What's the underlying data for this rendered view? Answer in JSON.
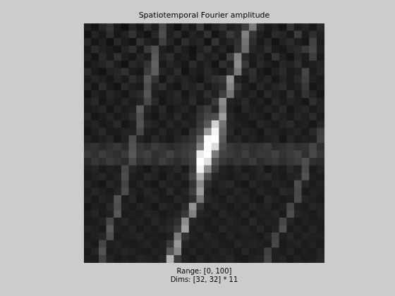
{
  "chart_data": {
    "type": "heatmap",
    "title": "Spatiotemporal Fourier amplitude",
    "annotations": [
      "Range: [0, 100]",
      "Dims: [32, 32] * 11"
    ],
    "color_range": [
      0,
      100
    ],
    "xlim": [
      0.5,
      32.5
    ],
    "ylim": [
      32.5,
      0.5
    ],
    "tick_labels": false,
    "grid": false,
    "cells": [
      [
        12,
        8,
        15,
        20,
        10,
        6,
        14,
        9,
        18,
        11,
        28,
        13,
        7,
        16,
        10,
        22,
        9,
        14,
        19,
        12,
        15,
        24,
        48,
        17,
        10,
        13,
        8,
        20,
        11,
        14,
        9,
        16
      ],
      [
        7,
        14,
        10,
        18,
        9,
        13,
        20,
        11,
        8,
        15,
        30,
        12,
        17,
        9,
        14,
        11,
        19,
        8,
        13,
        22,
        16,
        50,
        21,
        12,
        9,
        17,
        14,
        10,
        23,
        11,
        18,
        13
      ],
      [
        15,
        9,
        12,
        7,
        16,
        11,
        8,
        19,
        13,
        10,
        25,
        14,
        9,
        18,
        12,
        15,
        8,
        20,
        11,
        14,
        19,
        45,
        18,
        10,
        15,
        8,
        13,
        17,
        12,
        9,
        26,
        11
      ],
      [
        10,
        17,
        13,
        11,
        8,
        14,
        19,
        10,
        22,
        32,
        12,
        9,
        16,
        11,
        7,
        13,
        18,
        10,
        14,
        9,
        20,
        42,
        15,
        12,
        18,
        11,
        9,
        14,
        16,
        22,
        28,
        13
      ],
      [
        13,
        8,
        16,
        10,
        19,
        12,
        9,
        15,
        11,
        35,
        14,
        18,
        10,
        13,
        8,
        17,
        12,
        15,
        9,
        24,
        52,
        16,
        11,
        14,
        9,
        20,
        12,
        8,
        15,
        11,
        24,
        10
      ],
      [
        9,
        12,
        14,
        18,
        11,
        7,
        16,
        13,
        20,
        38,
        10,
        15,
        12,
        9,
        17,
        11,
        14,
        8,
        19,
        13,
        55,
        22,
        10,
        16,
        12,
        9,
        15,
        13,
        18,
        10,
        12,
        14
      ],
      [
        16,
        10,
        8,
        13,
        15,
        19,
        11,
        9,
        24,
        36,
        14,
        11,
        17,
        8,
        13,
        10,
        16,
        12,
        9,
        18,
        47,
        14,
        19,
        11,
        8,
        13,
        17,
        10,
        12,
        27,
        11,
        15
      ],
      [
        11,
        15,
        12,
        9,
        14,
        10,
        18,
        13,
        34,
        20,
        9,
        16,
        12,
        14,
        11,
        8,
        15,
        19,
        22,
        58,
        13,
        10,
        17,
        12,
        15,
        9,
        14,
        11,
        16,
        25,
        13,
        10
      ],
      [
        14,
        9,
        17,
        11,
        8,
        16,
        12,
        10,
        30,
        14,
        18,
        11,
        9,
        15,
        13,
        17,
        10,
        14,
        18,
        52,
        20,
        12,
        9,
        15,
        11,
        14,
        17,
        10,
        13,
        22,
        9,
        12
      ],
      [
        8,
        13,
        10,
        15,
        12,
        9,
        14,
        17,
        33,
        12,
        10,
        13,
        16,
        9,
        14,
        11,
        18,
        13,
        25,
        46,
        15,
        11,
        14,
        9,
        16,
        12,
        10,
        18,
        11,
        20,
        14,
        9
      ],
      [
        12,
        16,
        9,
        13,
        10,
        15,
        11,
        14,
        28,
        16,
        9,
        12,
        14,
        11,
        17,
        10,
        13,
        22,
        55,
        14,
        12,
        16,
        10,
        13,
        9,
        15,
        11,
        14,
        12,
        9,
        18,
        13
      ],
      [
        10,
        12,
        15,
        9,
        14,
        11,
        13,
        36,
        15,
        10,
        16,
        9,
        12,
        14,
        10,
        18,
        24,
        15,
        50,
        13,
        9,
        15,
        12,
        10,
        14,
        11,
        16,
        9,
        13,
        15,
        10,
        14
      ],
      [
        15,
        9,
        11,
        14,
        10,
        13,
        17,
        31,
        12,
        9,
        14,
        11,
        16,
        10,
        13,
        20,
        28,
        30,
        62,
        15,
        11,
        10,
        14,
        12,
        9,
        16,
        13,
        10,
        15,
        12,
        17,
        11
      ],
      [
        11,
        14,
        10,
        12,
        16,
        9,
        12,
        33,
        16,
        13,
        10,
        15,
        11,
        14,
        12,
        22,
        34,
        82,
        45,
        14,
        13,
        11,
        9,
        15,
        12,
        10,
        14,
        17,
        11,
        13,
        9,
        15
      ],
      [
        9,
        12,
        16,
        10,
        11,
        14,
        13,
        28,
        12,
        10,
        15,
        11,
        13,
        9,
        18,
        26,
        60,
        96,
        40,
        16,
        10,
        14,
        12,
        9,
        15,
        13,
        11,
        12,
        14,
        10,
        16,
        24
      ],
      [
        13,
        10,
        12,
        15,
        9,
        13,
        30,
        14,
        11,
        16,
        12,
        10,
        14,
        17,
        20,
        38,
        98,
        100,
        35,
        13,
        15,
        11,
        13,
        10,
        12,
        14,
        9,
        15,
        11,
        13,
        12,
        26
      ],
      [
        18,
        20,
        16,
        19,
        22,
        17,
        32,
        21,
        18,
        23,
        20,
        17,
        19,
        22,
        24,
        50,
        100,
        86,
        30,
        22,
        19,
        21,
        18,
        20,
        23,
        17,
        19,
        22,
        18,
        20,
        27,
        18
      ],
      [
        22,
        19,
        24,
        20,
        18,
        23,
        34,
        22,
        25,
        19,
        21,
        26,
        20,
        23,
        27,
        92,
        100,
        48,
        26,
        23,
        20,
        24,
        19,
        22,
        21,
        25,
        20,
        23,
        26,
        19,
        28,
        21
      ],
      [
        16,
        21,
        18,
        23,
        20,
        17,
        29,
        19,
        22,
        18,
        24,
        20,
        17,
        21,
        25,
        100,
        88,
        32,
        22,
        18,
        21,
        19,
        23,
        17,
        20,
        22,
        18,
        21,
        24,
        30,
        19,
        17
      ],
      [
        12,
        14,
        10,
        13,
        11,
        28,
        15,
        12,
        9,
        14,
        11,
        13,
        16,
        10,
        22,
        95,
        55,
        24,
        13,
        11,
        14,
        10,
        12,
        15,
        9,
        13,
        11,
        16,
        12,
        29,
        10,
        14
      ],
      [
        10,
        13,
        15,
        11,
        14,
        30,
        12,
        10,
        16,
        13,
        9,
        14,
        11,
        15,
        28,
        70,
        30,
        15,
        12,
        10,
        13,
        15,
        11,
        14,
        16,
        12,
        10,
        13,
        15,
        32,
        12,
        11
      ],
      [
        14,
        11,
        9,
        15,
        12,
        26,
        10,
        14,
        11,
        9,
        15,
        12,
        13,
        10,
        20,
        55,
        18,
        12,
        14,
        16,
        11,
        9,
        15,
        12,
        10,
        14,
        13,
        11,
        30,
        15,
        11,
        13
      ],
      [
        11,
        15,
        12,
        10,
        14,
        29,
        13,
        11,
        15,
        12,
        10,
        16,
        11,
        14,
        24,
        62,
        14,
        10,
        13,
        11,
        15,
        12,
        10,
        14,
        12,
        11,
        16,
        14,
        28,
        10,
        13,
        12
      ],
      [
        13,
        10,
        14,
        12,
        32,
        11,
        15,
        9,
        12,
        14,
        11,
        10,
        15,
        12,
        18,
        48,
        16,
        13,
        10,
        15,
        12,
        14,
        11,
        9,
        16,
        13,
        10,
        12,
        29,
        14,
        12,
        10
      ],
      [
        9,
        12,
        11,
        16,
        30,
        13,
        10,
        14,
        12,
        9,
        15,
        13,
        11,
        16,
        58,
        20,
        11,
        14,
        12,
        10,
        13,
        11,
        15,
        12,
        14,
        10,
        13,
        27,
        12,
        11,
        15,
        13
      ],
      [
        12,
        15,
        10,
        13,
        34,
        10,
        12,
        11,
        14,
        13,
        10,
        12,
        14,
        22,
        50,
        14,
        13,
        10,
        15,
        12,
        11,
        14,
        10,
        13,
        12,
        15,
        11,
        30,
        14,
        12,
        10,
        14
      ],
      [
        10,
        11,
        14,
        28,
        12,
        15,
        11,
        13,
        10,
        15,
        12,
        14,
        19,
        55,
        15,
        12,
        10,
        13,
        11,
        14,
        12,
        10,
        16,
        11,
        13,
        12,
        27,
        14,
        10,
        13,
        11,
        12
      ],
      [
        14,
        12,
        10,
        35,
        13,
        11,
        14,
        10,
        13,
        11,
        14,
        16,
        24,
        62,
        12,
        14,
        11,
        10,
        15,
        12,
        13,
        14,
        11,
        15,
        10,
        14,
        31,
        11,
        13,
        10,
        14,
        11
      ],
      [
        11,
        13,
        15,
        30,
        10,
        12,
        13,
        15,
        11,
        12,
        10,
        13,
        48,
        20,
        13,
        11,
        15,
        12,
        10,
        14,
        11,
        13,
        12,
        10,
        14,
        26,
        12,
        15,
        11,
        14,
        12,
        13
      ],
      [
        13,
        10,
        27,
        12,
        14,
        11,
        10,
        12,
        14,
        10,
        13,
        22,
        60,
        14,
        11,
        13,
        12,
        14,
        11,
        10,
        15,
        12,
        14,
        13,
        11,
        28,
        10,
        12,
        14,
        11,
        13,
        10
      ],
      [
        10,
        14,
        32,
        11,
        12,
        15,
        13,
        11,
        10,
        13,
        12,
        34,
        52,
        11,
        14,
        10,
        13,
        11,
        14,
        12,
        10,
        15,
        11,
        12,
        25,
        13,
        11,
        14,
        10,
        12,
        11,
        14
      ],
      [
        12,
        11,
        26,
        14,
        10,
        12,
        11,
        14,
        13,
        11,
        15,
        70,
        22,
        13,
        10,
        14,
        11,
        13,
        12,
        15,
        11,
        10,
        13,
        14,
        27,
        12,
        14,
        10,
        13,
        11,
        12,
        15
      ]
    ]
  }
}
